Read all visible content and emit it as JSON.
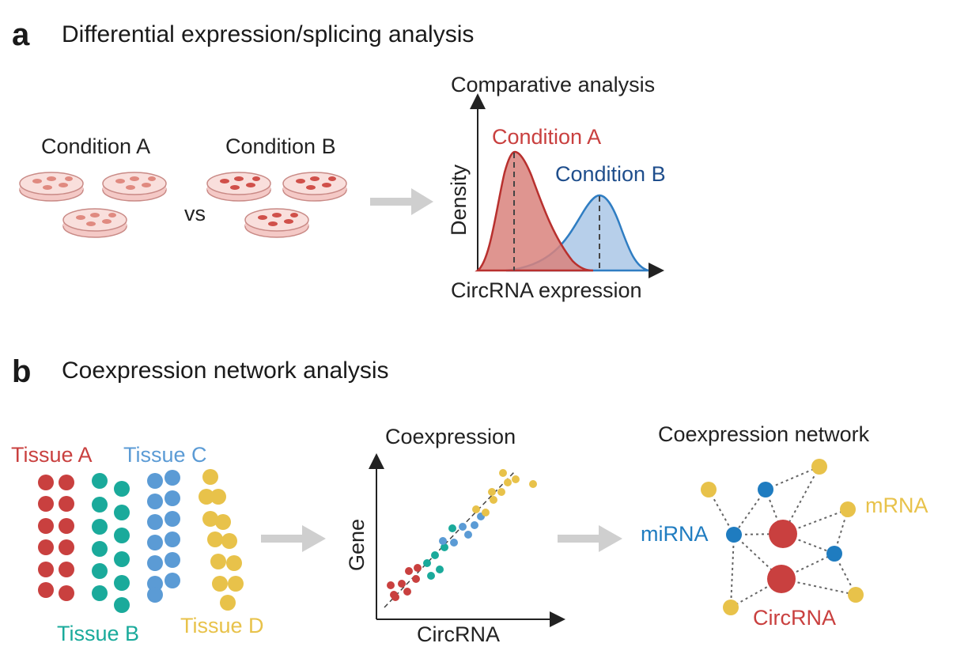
{
  "panel_a": {
    "letter": "a",
    "title": "Differential expression/splicing analysis",
    "condition_a": "Condition A",
    "condition_b": "Condition B",
    "vs": "vs",
    "plot_title": "Comparative analysis",
    "y_label": "Density",
    "x_label": "CircRNA expression",
    "series_a": "Condition A",
    "series_b": "Condition B"
  },
  "panel_b": {
    "letter": "b",
    "title": "Coexpression network analysis",
    "tissue_a": "Tissue A",
    "tissue_b": "Tissue B",
    "tissue_c": "Tissue C",
    "tissue_d": "Tissue D",
    "scatter_title": "Coexpression",
    "scatter_y": "Gene",
    "scatter_x": "CircRNA",
    "network_title": "Coexpression network",
    "mirna": "miRNA",
    "mrna": "mRNA",
    "circrna": "CircRNA"
  },
  "colors": {
    "red": "#c9403f",
    "teal": "#1aaa9b",
    "blue": "#5b9bd5",
    "yellow": "#e8c24a",
    "dark_blue": "#1f4e8c",
    "mirna_blue": "#1f7cc0",
    "arrow_gray": "#cfcfcf"
  }
}
